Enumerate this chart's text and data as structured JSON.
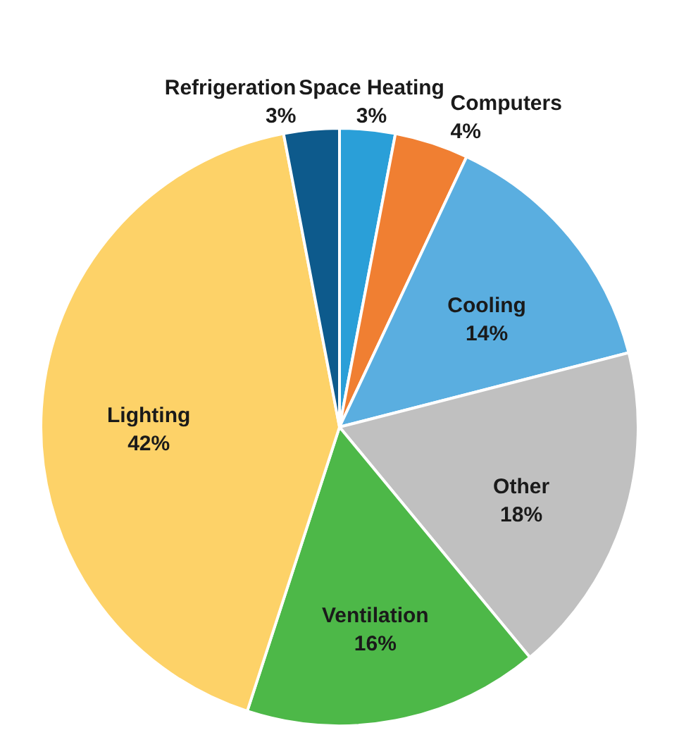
{
  "chart_data": {
    "type": "pie",
    "categories": [
      "Space Heating",
      "Computers",
      "Cooling",
      "Other",
      "Ventilation",
      "Lighting",
      "Refrigeration"
    ],
    "values": [
      3,
      4,
      14,
      18,
      16,
      42,
      3
    ],
    "colors": [
      "#2a9fd8",
      "#f07f32",
      "#5aaee0",
      "#c0c0c0",
      "#4db848",
      "#fdd268",
      "#0d5a8c"
    ],
    "value_labels": [
      "3%",
      "4%",
      "14%",
      "18%",
      "16%",
      "42%",
      "3%"
    ],
    "legend": false
  }
}
